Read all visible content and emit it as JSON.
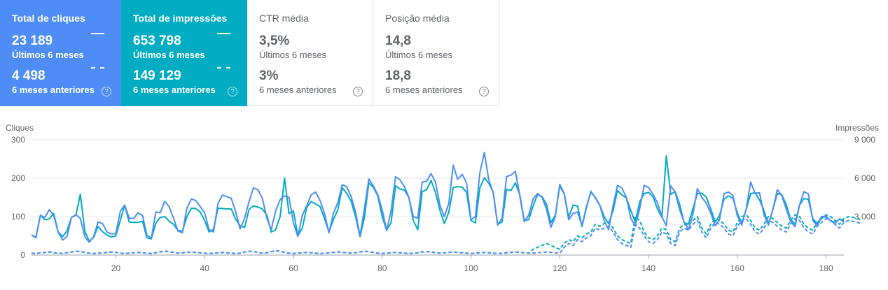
{
  "cards": [
    {
      "title": "Total de cliques",
      "current_value": "23 189",
      "current_label": "Últimos 6 meses",
      "previous_value": "4 498",
      "previous_label": "6 meses anteriores",
      "help": "?"
    },
    {
      "title": "Total de impressões",
      "current_value": "653 798",
      "current_label": "Últimos 6 meses",
      "previous_value": "149 129",
      "previous_label": "6 meses anteriores",
      "help": "?"
    },
    {
      "title": "CTR média",
      "current_value": "3,5%",
      "current_label": "Últimos 6 meses",
      "previous_value": "3%",
      "previous_label": "6 meses anteriores",
      "help": "?"
    },
    {
      "title": "Posição média",
      "current_value": "14,8",
      "current_label": "Últimos 6 meses",
      "previous_value": "18,8",
      "previous_label": "6 meses anteriores",
      "help": "?"
    }
  ],
  "colors": {
    "clicks": "#4e8df5",
    "impressions": "#00acc1",
    "grid": "#e8eaed",
    "axis": "#5f6368"
  },
  "chart_data": {
    "type": "line",
    "ylabel": "Cliques",
    "y2label": "Impressões",
    "ylim": [
      0,
      300
    ],
    "y2lim": [
      0,
      9000
    ],
    "xlim": [
      1,
      184
    ],
    "y_ticks": [
      "0",
      "100",
      "200",
      "300"
    ],
    "y2_ticks": [
      "",
      "3 000",
      "6 000",
      "9 000"
    ],
    "x_ticks": [
      "20",
      "40",
      "60",
      "80",
      "100",
      "120",
      "140",
      "160",
      "180"
    ],
    "grid": true,
    "series": [
      {
        "name": "Cliques",
        "style": "solid",
        "axis": "left",
        "values": [
          52,
          47,
          103,
          98,
          118,
          103,
          60,
          39,
          48,
          98,
          105,
          95,
          48,
          33,
          48,
          86,
          82,
          60,
          55,
          56,
          114,
          130,
          96,
          95,
          110,
          103,
          52,
          44,
          112,
          110,
          140,
          126,
          96,
          62,
          58,
          122,
          146,
          142,
          126,
          110,
          66,
          60,
          134,
          156,
          152,
          148,
          112,
          68,
          96,
          139,
          175,
          170,
          148,
          96,
          66,
          115,
          144,
          154,
          150,
          84,
          48,
          104,
          128,
          157,
          164,
          142,
          108,
          58,
          108,
          137,
          183,
          178,
          152,
          112,
          50,
          121,
          198,
          180,
          157,
          118,
          64,
          115,
          204,
          196,
          178,
          150,
          100,
          96,
          190,
          192,
          212,
          190,
          130,
          100,
          134,
          234,
          197,
          210,
          188,
          92,
          100,
          214,
          267,
          196,
          162,
          78,
          96,
          204,
          208,
          218,
          154,
          87,
          104,
          146,
          160,
          150,
          120,
          72,
          100,
          184,
          160,
          92,
          108,
          112,
          76,
          126,
          163,
          151,
          130,
          90,
          66,
          128,
          181,
          174,
          150,
          96,
          75,
          120,
          181,
          176,
          158,
          136,
          100,
          76,
          180,
          164,
          118,
          86,
          66,
          106,
          173,
          150,
          135,
          110,
          76,
          92,
          160,
          164,
          155,
          102,
          78,
          120,
          190,
          161,
          162,
          104,
          80,
          118,
          170,
          155,
          120,
          88,
          74,
          130,
          165,
          159,
          90,
          76,
          100,
          101,
          89,
          82,
          94,
          86
        ]
      },
      {
        "name": "Impressões",
        "style": "solid",
        "axis": "right",
        "values": [
          1560,
          1350,
          3120,
          2760,
          2820,
          3240,
          1800,
          1440,
          1890,
          2940,
          3120,
          4740,
          1860,
          1080,
          1380,
          2220,
          1830,
          1560,
          1410,
          1500,
          2700,
          3900,
          2580,
          2550,
          2550,
          2640,
          1350,
          1260,
          2490,
          2940,
          3000,
          2640,
          2400,
          1920,
          1860,
          3000,
          3660,
          3630,
          3360,
          2700,
          1800,
          2010,
          3660,
          3630,
          3600,
          3600,
          2790,
          2280,
          2160,
          3570,
          3840,
          3750,
          3600,
          3120,
          1800,
          1980,
          3000,
          6000,
          3240,
          3450,
          1500,
          2100,
          3720,
          4170,
          3990,
          3780,
          2850,
          1800,
          2760,
          3540,
          5250,
          4830,
          4200,
          3000,
          1440,
          2940,
          5640,
          5280,
          4620,
          3000,
          1920,
          2520,
          5400,
          5160,
          5070,
          4500,
          2700,
          1980,
          4950,
          5100,
          5820,
          4890,
          3480,
          2460,
          3330,
          5280,
          5340,
          5310,
          4890,
          2700,
          2520,
          5250,
          6030,
          5610,
          4920,
          2400,
          2580,
          5130,
          5040,
          5640,
          4680,
          2700,
          2760,
          3840,
          4740,
          4560,
          3960,
          2520,
          3120,
          5400,
          4770,
          2940,
          3900,
          3840,
          2220,
          3660,
          4980,
          4470,
          3900,
          3000,
          2460,
          3450,
          5040,
          4680,
          4470,
          3480,
          2580,
          4140,
          4800,
          4890,
          4560,
          3600,
          2940,
          7740,
          4740,
          4950,
          3960,
          2520,
          2430,
          3630,
          4800,
          4830,
          4530,
          3600,
          2580,
          3090,
          4380,
          4620,
          4440,
          3300,
          2430,
          3570,
          4800,
          4860,
          4290,
          3480,
          2340,
          3570,
          4800,
          4710,
          3960,
          2790,
          2400,
          3900,
          4410,
          4350,
          2850,
          2430,
          3000,
          2970,
          2700,
          2520,
          2820,
          2700
        ]
      },
      {
        "name": "Cliques (6 meses anteriores)",
        "style": "dashed",
        "axis": "left",
        "values": [
          5,
          4,
          6,
          7,
          8,
          6,
          5,
          4,
          6,
          8,
          10,
          9,
          7,
          5,
          4,
          5,
          6,
          7,
          8,
          7,
          5,
          4,
          5,
          6,
          7,
          6,
          5,
          4,
          6,
          8,
          10,
          9,
          7,
          5,
          6,
          7,
          8,
          7,
          6,
          5,
          4,
          5,
          6,
          7,
          6,
          5,
          4,
          5,
          8,
          10,
          9,
          7,
          5,
          6,
          9,
          11,
          10,
          7,
          5,
          4,
          5,
          6,
          7,
          6,
          5,
          4,
          5,
          6,
          7,
          8,
          7,
          6,
          5,
          6,
          8,
          10,
          9,
          7,
          5,
          4,
          5,
          6,
          7,
          6,
          5,
          4,
          5,
          6,
          8,
          9,
          8,
          6,
          5,
          6,
          7,
          8,
          7,
          6,
          5,
          4,
          5,
          6,
          7,
          6,
          5,
          4,
          5,
          6,
          7,
          8,
          7,
          6,
          5,
          5,
          6,
          7,
          8,
          7,
          6,
          5,
          20,
          30,
          25,
          40,
          35,
          45,
          50,
          70,
          65,
          70,
          75,
          60,
          40,
          30,
          25,
          20,
          80,
          70,
          50,
          35,
          30,
          40,
          60,
          55,
          30,
          25,
          60,
          70,
          65,
          80,
          90,
          60,
          45,
          70,
          85,
          80,
          70,
          55,
          50,
          75,
          90,
          95,
          80,
          60,
          55,
          70,
          90,
          85,
          75,
          65,
          60,
          80,
          95,
          90,
          70,
          60,
          55,
          75,
          85,
          95,
          90,
          80,
          70,
          85,
          90,
          88,
          85,
          82
        ]
      },
      {
        "name": "Impressões (6 meses anteriores)",
        "style": "dashed",
        "axis": "right",
        "values": [
          150,
          120,
          180,
          210,
          270,
          180,
          150,
          120,
          180,
          240,
          300,
          270,
          210,
          150,
          120,
          150,
          180,
          210,
          240,
          210,
          150,
          120,
          150,
          180,
          210,
          180,
          150,
          120,
          180,
          240,
          300,
          270,
          210,
          150,
          180,
          210,
          240,
          210,
          180,
          150,
          120,
          150,
          180,
          210,
          180,
          150,
          120,
          150,
          240,
          300,
          270,
          210,
          150,
          180,
          270,
          330,
          300,
          210,
          150,
          120,
          150,
          180,
          210,
          180,
          150,
          120,
          150,
          180,
          210,
          240,
          210,
          180,
          150,
          180,
          240,
          300,
          270,
          210,
          150,
          120,
          150,
          180,
          210,
          180,
          150,
          120,
          150,
          180,
          240,
          270,
          240,
          180,
          150,
          180,
          210,
          240,
          210,
          180,
          150,
          120,
          150,
          180,
          210,
          180,
          150,
          120,
          150,
          180,
          210,
          240,
          210,
          180,
          150,
          450,
          600,
          750,
          900,
          750,
          600,
          450,
          900,
          1200,
          1050,
          1500,
          1350,
          1650,
          1800,
          2400,
          2250,
          2460,
          2550,
          2100,
          1500,
          1200,
          1050,
          900,
          3000,
          2700,
          1800,
          1350,
          1200,
          1500,
          2100,
          2000,
          1200,
          1050,
          2100,
          2400,
          2300,
          2700,
          3000,
          2100,
          1650,
          2400,
          2850,
          2700,
          2400,
          1950,
          1800,
          2550,
          3000,
          3150,
          2700,
          2100,
          1950,
          2400,
          3000,
          2850,
          2550,
          2250,
          2100,
          2700,
          3150,
          3000,
          2400,
          2100,
          1950,
          2550,
          2850,
          3150,
          3000,
          2700,
          2400,
          2850,
          3000,
          2950,
          2850,
          2750
        ]
      }
    ]
  }
}
